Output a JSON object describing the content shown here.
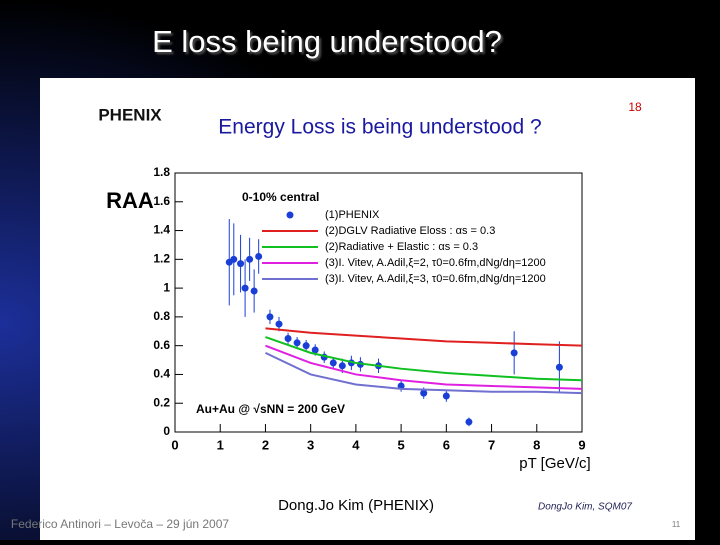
{
  "slide": {
    "title": "E loss being understood?",
    "footer": "Federico Antinori – Levoča – 29 jún 2007",
    "page": "11",
    "caption": "Dong.Jo Kim (PHENIX)",
    "credit": "DongJo Kim, SQM07",
    "logo": "PHENIX",
    "slide_number": "18"
  },
  "chart_data": {
    "type": "line",
    "title": "Energy Loss is being understood ?",
    "annotation": "0-10% central",
    "system": "Au+Au @ √sNN = 200 GeV",
    "x_label": "pT [GeV/c]",
    "y_label": "RAA",
    "xlim": [
      0,
      9
    ],
    "xticks": [
      0,
      1,
      2,
      3,
      4,
      5,
      6,
      7,
      8,
      9
    ],
    "ylim": [
      0,
      1.8
    ],
    "yticks": [
      0,
      0.2,
      0.4,
      0.6,
      0.8,
      1,
      1.2,
      1.4,
      1.6,
      1.8
    ],
    "series": [
      {
        "name": "(1)PHENIX",
        "type": "scatter",
        "color": "#1a3fd6",
        "x": [
          1.2,
          1.3,
          1.45,
          1.55,
          1.65,
          1.75,
          1.85,
          2.1,
          2.3,
          2.5,
          2.7,
          2.9,
          3.1,
          3.3,
          3.5,
          3.7,
          3.9,
          4.1,
          4.5,
          5.0,
          5.5,
          6.0,
          6.5,
          7.5,
          8.5
        ],
        "values": [
          1.18,
          1.2,
          1.17,
          1.0,
          1.2,
          0.98,
          1.22,
          0.8,
          0.75,
          0.65,
          0.62,
          0.6,
          0.57,
          0.52,
          0.48,
          0.46,
          0.48,
          0.47,
          0.46,
          0.32,
          0.27,
          0.25,
          0.07,
          0.55,
          0.45
        ],
        "errors": [
          0.3,
          0.25,
          0.2,
          0.2,
          0.15,
          0.15,
          0.12,
          0.05,
          0.05,
          0.04,
          0.04,
          0.04,
          0.04,
          0.04,
          0.04,
          0.05,
          0.05,
          0.05,
          0.05,
          0.04,
          0.04,
          0.04,
          0.03,
          0.15,
          0.18
        ]
      },
      {
        "name": "(2)DGLV Radiative Eloss : αs = 0.3",
        "color": "#e02020",
        "x": [
          2,
          3,
          4,
          5,
          6,
          7,
          8,
          9
        ],
        "values": [
          0.72,
          0.69,
          0.67,
          0.65,
          0.63,
          0.62,
          0.61,
          0.6
        ]
      },
      {
        "name": "(2)Radiative + Elastic : αs = 0.3",
        "color": "#10c020",
        "x": [
          2,
          3,
          4,
          5,
          6,
          7,
          8,
          9
        ],
        "values": [
          0.66,
          0.55,
          0.48,
          0.44,
          0.41,
          0.39,
          0.37,
          0.36
        ]
      },
      {
        "name": "(3)I. Vitev, A.Adil,ξ=2, τ0=0.6fm,dNg/dη=1200",
        "color": "#e020e0",
        "x": [
          2,
          3,
          4,
          5,
          6,
          7,
          8,
          9
        ],
        "values": [
          0.6,
          0.48,
          0.4,
          0.36,
          0.33,
          0.32,
          0.31,
          0.3
        ]
      },
      {
        "name": "(3)I. Vitev, A.Adil,ξ=3, τ0=0.6fm,dNg/dη=1200",
        "color": "#7070d0",
        "x": [
          2,
          3,
          4,
          5,
          6,
          7,
          8,
          9
        ],
        "values": [
          0.55,
          0.4,
          0.33,
          0.3,
          0.29,
          0.28,
          0.28,
          0.27
        ]
      }
    ]
  }
}
